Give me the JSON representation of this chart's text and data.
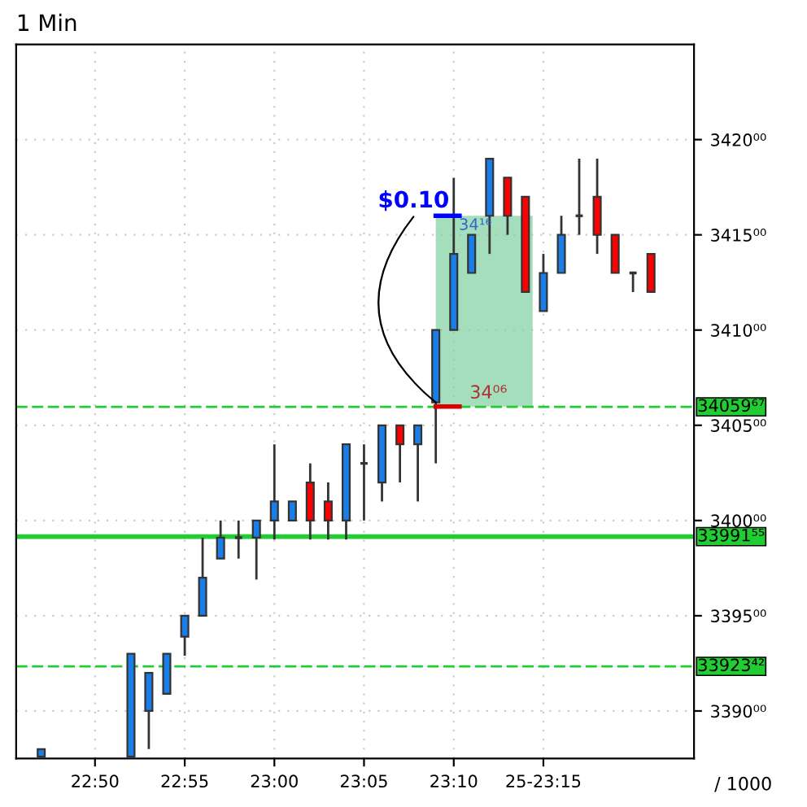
{
  "chart_data": {
    "type": "candlestick",
    "title": "1 Min",
    "x": [
      22.7833,
      22.8667,
      22.8833,
      22.9,
      22.9167,
      22.9333,
      22.95,
      22.9667,
      22.9833,
      23.0,
      23.0167,
      23.0333,
      23.05,
      23.0667,
      23.0833,
      23.1,
      23.1167,
      23.1333,
      23.15,
      23.1667,
      23.1833,
      23.2,
      23.2167,
      23.2333,
      23.25,
      23.2667,
      23.2833,
      23.3,
      23.3167,
      23.3333,
      23.35
    ],
    "ohlc": [
      [
        3387.6,
        3388.0,
        3387.6,
        3388.0
      ],
      [
        3387.6,
        3393.0,
        3387.6,
        3393.0
      ],
      [
        3390.0,
        3392.0,
        3388.0,
        3392.0
      ],
      [
        3390.9,
        3393.0,
        3390.9,
        3393.0
      ],
      [
        3393.9,
        3395.0,
        3392.9,
        3395.0
      ],
      [
        3395.0,
        3399.1,
        3395.0,
        3397.0
      ],
      [
        3398.0,
        3400.0,
        3398.0,
        3399.1
      ],
      [
        3399.1,
        3400.0,
        3398.0,
        3399.1
      ],
      [
        3399.1,
        3400.0,
        3396.9,
        3400.0
      ],
      [
        3400.0,
        3404.0,
        3399.0,
        3401.0
      ],
      [
        3400.0,
        3401.0,
        3400.0,
        3401.0
      ],
      [
        3402.0,
        3403.0,
        3399.0,
        3400.0
      ],
      [
        3401.0,
        3402.0,
        3399.0,
        3400.0
      ],
      [
        3400.0,
        3404.0,
        3399.0,
        3404.0
      ],
      [
        3403.0,
        3404.0,
        3400.0,
        3403.0
      ],
      [
        3402.0,
        3405.0,
        3401.0,
        3405.0
      ],
      [
        3405.0,
        3405.0,
        3402.0,
        3404.0
      ],
      [
        3404.0,
        3405.0,
        3401.0,
        3405.0
      ],
      [
        3406.2,
        3410.0,
        3403.0,
        3410.0
      ],
      [
        3410.0,
        3418.0,
        3410.0,
        3414.0
      ],
      [
        3413.0,
        3415.0,
        3413.0,
        3415.0
      ],
      [
        3416.0,
        3419.0,
        3414.0,
        3419.0
      ],
      [
        3418.0,
        3418.0,
        3415.0,
        3416.0
      ],
      [
        3417.0,
        3417.0,
        3412.0,
        3412.0
      ],
      [
        3411.0,
        3414.0,
        3411.0,
        3413.0
      ],
      [
        3413.0,
        3416.0,
        3413.0,
        3415.0
      ],
      [
        3416.0,
        3419.0,
        3415.0,
        3416.0
      ],
      [
        3417.0,
        3419.0,
        3414.0,
        3415.0
      ],
      [
        3415.0,
        3415.0,
        3413.0,
        3413.0
      ],
      [
        3413.0,
        3413.0,
        3412.0,
        3413.0
      ],
      [
        3414.0,
        3414.0,
        3412.0,
        3412.0
      ]
    ],
    "colors": [
      "#1a7ee8",
      "#1a7ee8",
      "#1a7ee8",
      "#1a7ee8",
      "#1a7ee8",
      "#1a7ee8",
      "#1a7ee8",
      "#333333",
      "#1a7ee8",
      "#1a7ee8",
      "#1a7ee8",
      "#ff0000",
      "#ff0000",
      "#1a7ee8",
      "#333333",
      "#1a7ee8",
      "#ff0000",
      "#1a7ee8",
      "#1a7ee8",
      "#1a7ee8",
      "#1a7ee8",
      "#1a7ee8",
      "#ff0000",
      "#ff0000",
      "#1a7ee8",
      "#1a7ee8",
      "#333333",
      "#ff0000",
      "#ff0000",
      "#333333",
      "#ff0000"
    ],
    "xlim": [
      22.76,
      23.39
    ],
    "xticks": [
      {
        "value": 22.8333,
        "label": "22:50"
      },
      {
        "value": 22.9167,
        "label": "22:55"
      },
      {
        "value": 23.0,
        "label": "23:00"
      },
      {
        "value": 23.0833,
        "label": "23:05"
      },
      {
        "value": 23.1667,
        "label": "23:10"
      },
      {
        "value": 23.25,
        "label": "25-23:15"
      }
    ],
    "ylim": [
      3387.5,
      3425.0
    ],
    "yticks": [
      {
        "value": 3390,
        "label": "3390⁰⁰"
      },
      {
        "value": 3395,
        "label": "3395⁰⁰"
      },
      {
        "value": 3400,
        "label": "3400⁰⁰"
      },
      {
        "value": 3405,
        "label": "3405⁰⁰"
      },
      {
        "value": 3410,
        "label": "3410⁰⁰"
      },
      {
        "value": 3415,
        "label": "3415⁰⁰"
      },
      {
        "value": 3420,
        "label": "3420⁰⁰"
      }
    ],
    "grid": true,
    "ref_lines": [
      {
        "axis": "y",
        "value": 3405.967,
        "label": "34059⁶⁷",
        "color": "#22cc33",
        "line_style": "dashed"
      },
      {
        "axis": "y",
        "value": 3399.155,
        "label": "33991⁵⁵",
        "color": "#22cc33",
        "line_style": "solid"
      },
      {
        "axis": "y",
        "value": 3392.342,
        "label": "33923⁴²",
        "color": "#22cc33",
        "line_style": "dashed"
      }
    ],
    "annotations": [
      {
        "text": "$0.10",
        "x": 23.15,
        "y": 3406.2
      },
      "34¹⁶",
      "34⁰⁶",
      "/ 1000"
    ]
  }
}
